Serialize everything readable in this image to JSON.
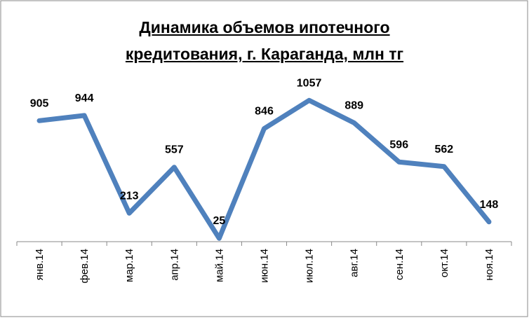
{
  "chart_data": {
    "type": "line",
    "title": "Динамика объемов ипотечного кредитования, г. Караганда, млн тг",
    "categories": [
      "янв.14",
      "фев.14",
      "мар.14",
      "апр.14",
      "май.14",
      "июн.14",
      "июл.14",
      "авг.14",
      "сен.14",
      "окт.14",
      "ноя.14"
    ],
    "values": [
      905,
      944,
      213,
      557,
      25,
      846,
      1057,
      889,
      596,
      562,
      148
    ],
    "color": "#4f81bd",
    "ylim": [
      0,
      1200
    ]
  }
}
